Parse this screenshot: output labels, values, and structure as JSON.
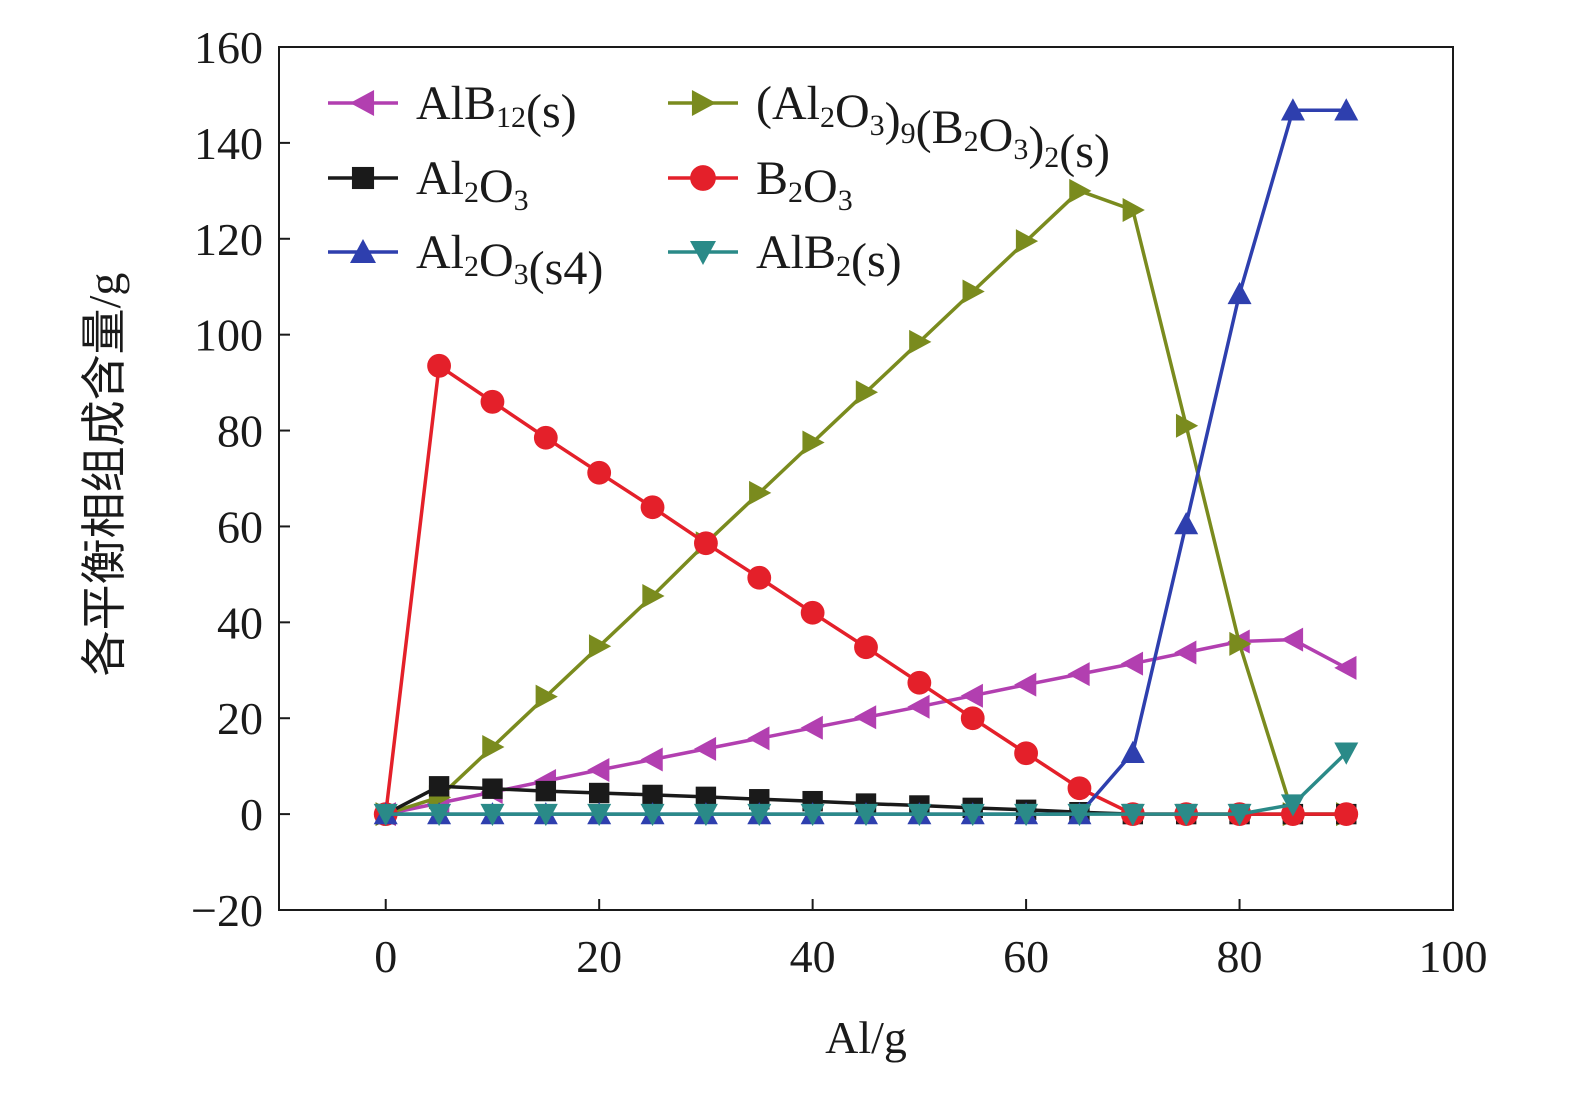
{
  "chart_data": {
    "type": "line",
    "title": "",
    "xlabel": "Al/g",
    "ylabel": "各平衡相组成含量/g",
    "xlim": [
      -10,
      100
    ],
    "ylim": [
      -20,
      160
    ],
    "xticks": [
      0,
      20,
      40,
      60,
      80,
      100
    ],
    "yticks": [
      -20,
      0,
      20,
      40,
      60,
      80,
      100,
      120,
      140,
      160
    ],
    "xtick_labels": [
      "0",
      "20",
      "40",
      "60",
      "80",
      "100"
    ],
    "ytick_labels": [
      "−20",
      "0",
      "20",
      "40",
      "60",
      "80",
      "100",
      "120",
      "140",
      "160"
    ],
    "grid": false,
    "legend_position": "top-left",
    "x": [
      0,
      5,
      10,
      15,
      20,
      25,
      30,
      35,
      40,
      45,
      50,
      55,
      60,
      65,
      70,
      75,
      80,
      85,
      90
    ],
    "series": [
      {
        "name": "AlB12(s)",
        "legend_parts": [
          [
            "AlB",
            "n"
          ],
          [
            "12",
            "sub"
          ],
          [
            "(s)",
            "n"
          ]
        ],
        "color": "#b23fb0",
        "marker": "triangle-left",
        "values": [
          0,
          2.3,
          4.6,
          6.9,
          9.2,
          11.4,
          13.6,
          15.8,
          18.0,
          20.2,
          22.4,
          24.7,
          27.0,
          29.2,
          31.4,
          33.7,
          36.0,
          36.4,
          30.5
        ]
      },
      {
        "name": "(Al2O3)9(B2O3)2(s)",
        "legend_parts": [
          [
            "(Al",
            "n"
          ],
          [
            "2",
            "sub"
          ],
          [
            "O",
            "n"
          ],
          [
            "3",
            "sub"
          ],
          [
            ")",
            "n"
          ],
          [
            "9",
            "sub"
          ],
          [
            "(B",
            "n"
          ],
          [
            "2",
            "sub"
          ],
          [
            "O",
            "n"
          ],
          [
            "3",
            "sub"
          ],
          [
            ")",
            "n"
          ],
          [
            "2",
            "sub"
          ],
          [
            "(s)",
            "n"
          ]
        ],
        "color": "#7a8b1e",
        "marker": "triangle-right",
        "values": [
          0,
          3.5,
          14.0,
          24.5,
          35.0,
          45.5,
          56.5,
          67.0,
          77.5,
          88.0,
          98.5,
          109.0,
          119.5,
          130.0,
          126.0,
          81.0,
          35.5,
          0,
          0
        ]
      },
      {
        "name": "Al2O3",
        "legend_parts": [
          [
            "Al",
            "n"
          ],
          [
            "2",
            "sub"
          ],
          [
            "O",
            "n"
          ],
          [
            "3",
            "sub"
          ]
        ],
        "color": "#1a1a1a",
        "marker": "square",
        "values": [
          0,
          5.8,
          5.3,
          4.8,
          4.4,
          4.0,
          3.6,
          3.1,
          2.7,
          2.2,
          1.8,
          1.3,
          0.9,
          0.4,
          0,
          0,
          0,
          0,
          0
        ]
      },
      {
        "name": "B2O3",
        "legend_parts": [
          [
            "B",
            "n"
          ],
          [
            "2",
            "sub"
          ],
          [
            "O",
            "n"
          ],
          [
            "3",
            "sub"
          ]
        ],
        "color": "#e4202a",
        "marker": "circle",
        "values": [
          0,
          93.5,
          86.0,
          78.5,
          71.2,
          64.0,
          56.5,
          49.3,
          42.0,
          34.8,
          27.4,
          20.0,
          12.7,
          5.4,
          0,
          0,
          0,
          0,
          0
        ]
      },
      {
        "name": "Al2O3(s4)",
        "legend_parts": [
          [
            "Al",
            "n"
          ],
          [
            "2",
            "sub"
          ],
          [
            "O",
            "n"
          ],
          [
            "3",
            "sub"
          ],
          [
            "(s4)",
            "n"
          ]
        ],
        "color": "#2e3fae",
        "marker": "triangle-up",
        "values": [
          0,
          0,
          0,
          0,
          0,
          0,
          0,
          0,
          0,
          0,
          0,
          0,
          0,
          0,
          12.8,
          60.5,
          108.5,
          146.8,
          146.8
        ]
      },
      {
        "name": "AlB2(s)",
        "legend_parts": [
          [
            "AlB",
            "n"
          ],
          [
            "2",
            "sub"
          ],
          [
            "(s)",
            "n"
          ]
        ],
        "color": "#2a8a88",
        "marker": "triangle-down",
        "values": [
          0,
          0,
          0,
          0,
          0,
          0,
          0,
          0,
          0,
          0,
          0,
          0,
          0,
          0,
          0,
          0,
          0,
          2.0,
          12.8
        ]
      }
    ]
  }
}
